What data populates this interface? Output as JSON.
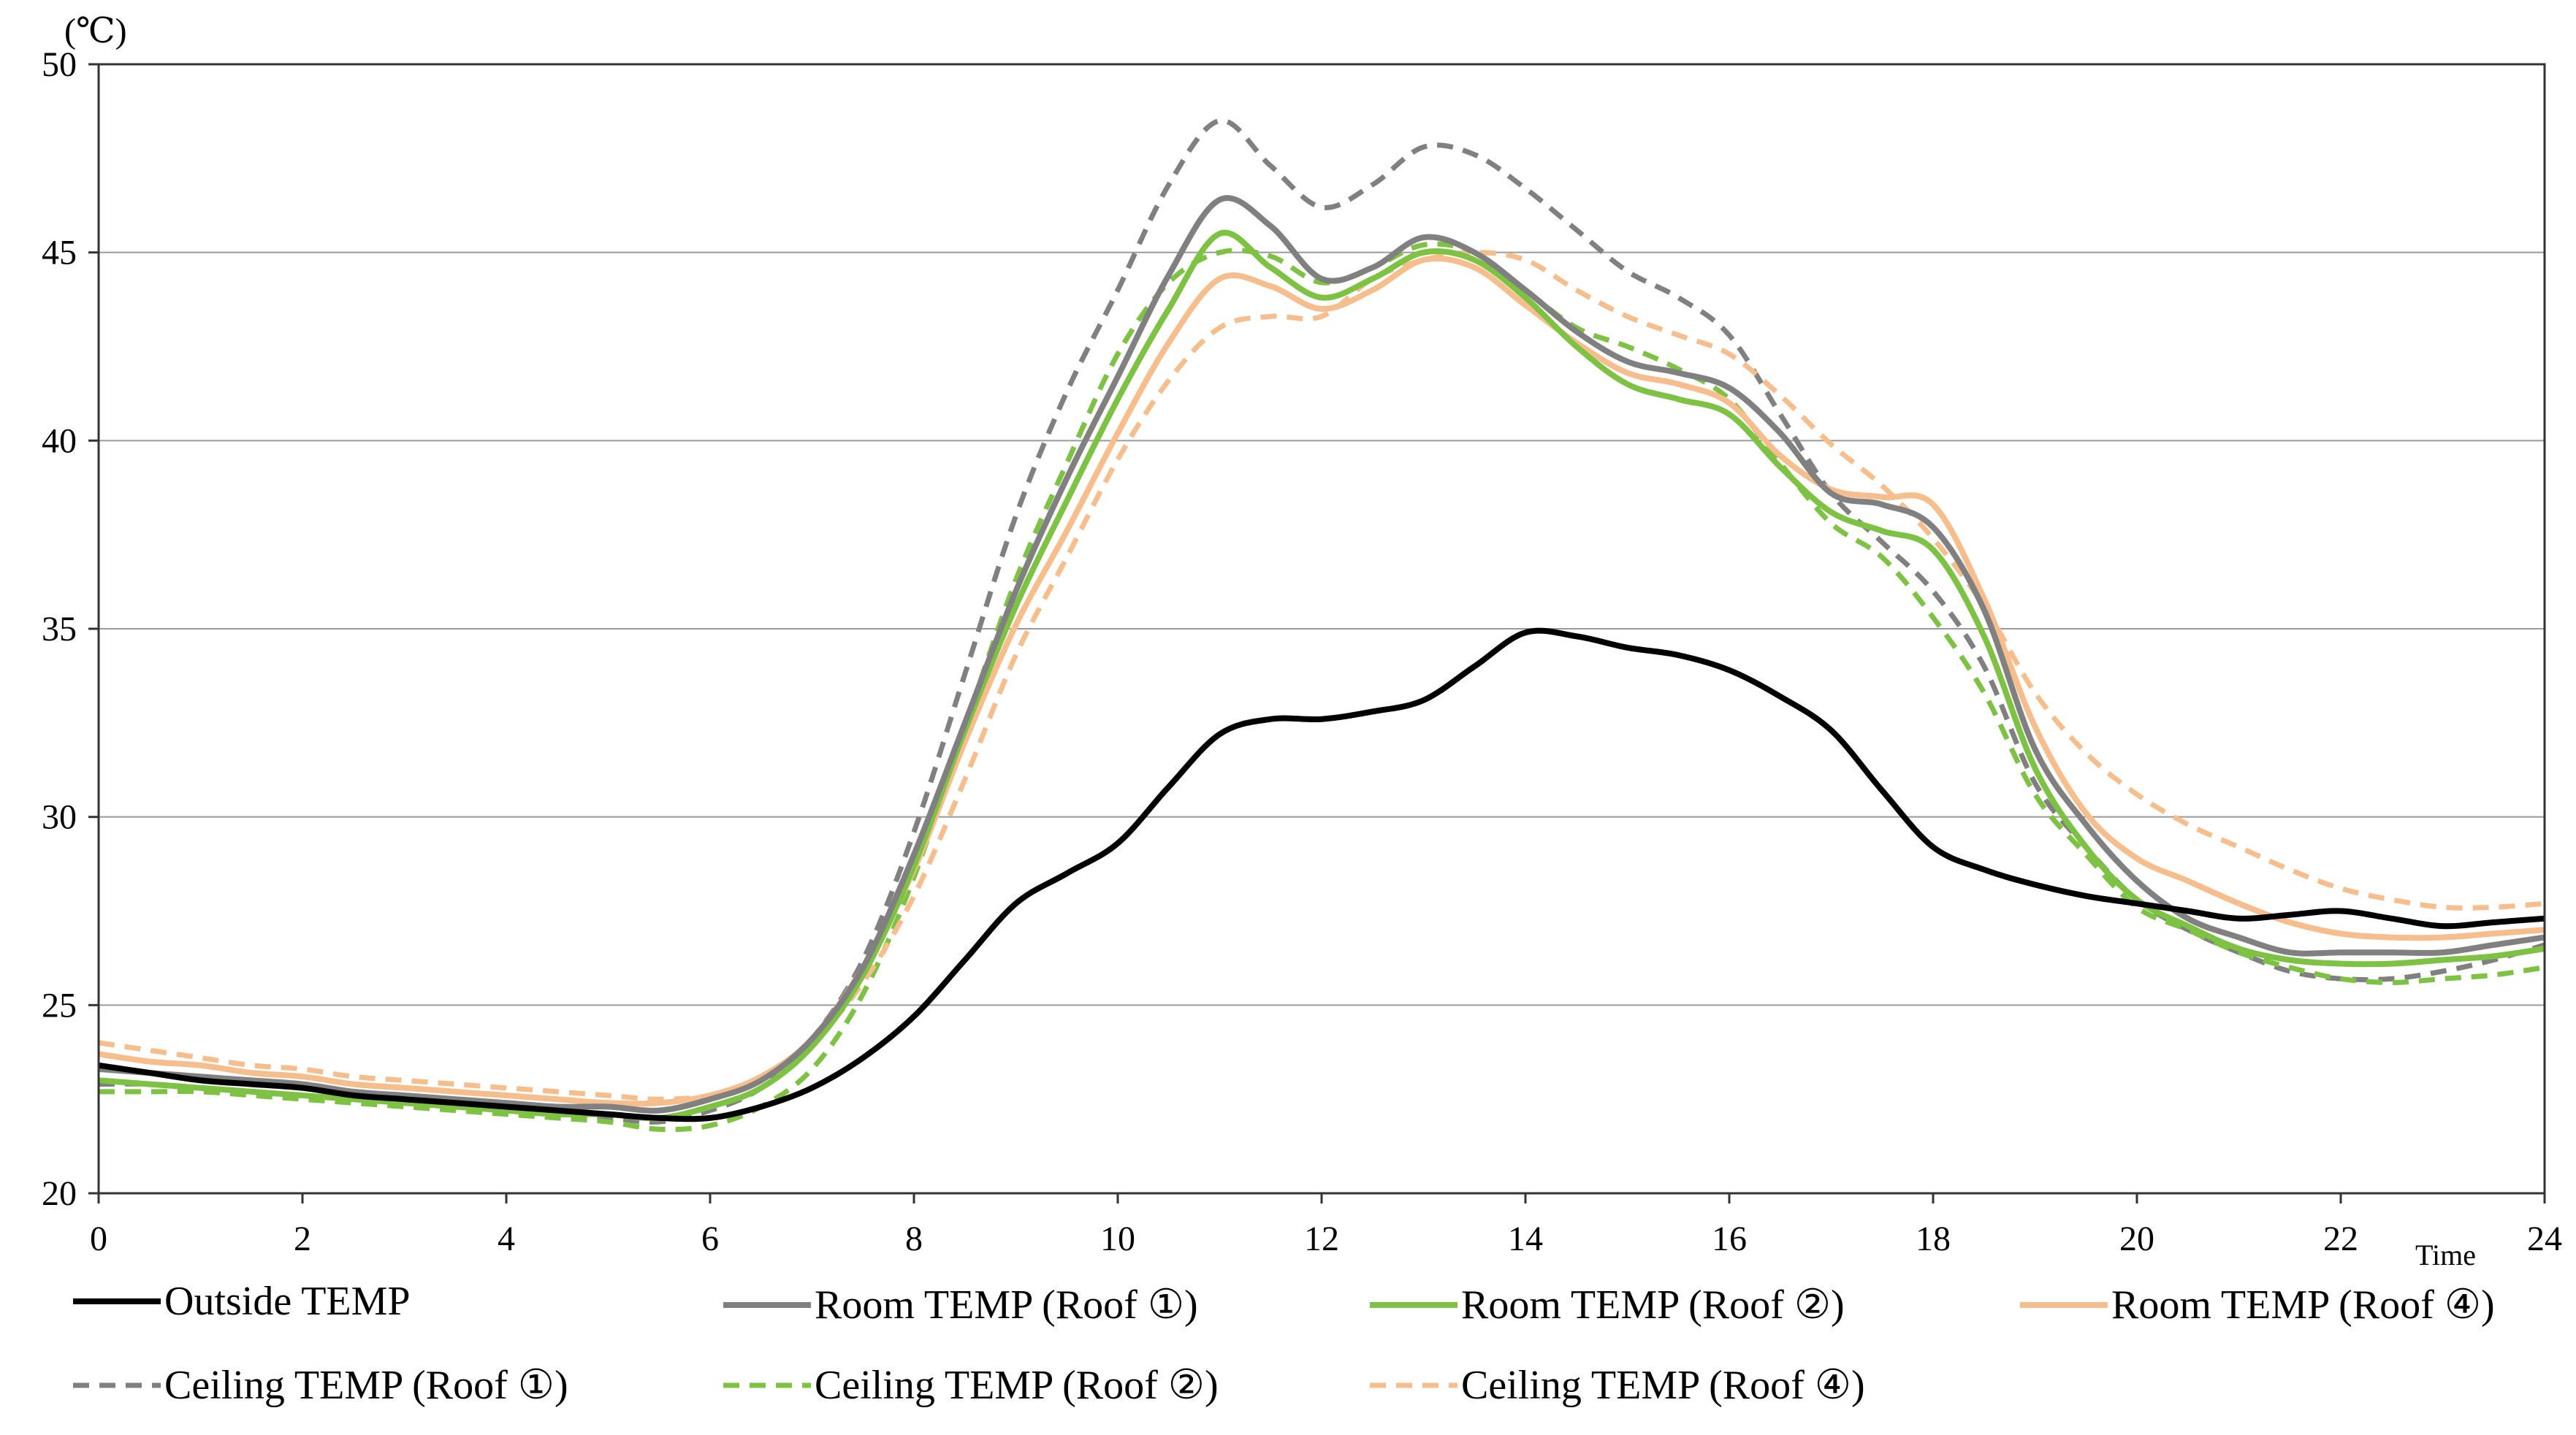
{
  "chart_data": {
    "type": "line",
    "title": "",
    "ylabel": "(℃)",
    "xlabel": "Time",
    "xlim": [
      0,
      24
    ],
    "ylim": [
      20,
      50
    ],
    "x_ticks": [
      "0",
      "2",
      "4",
      "6",
      "8",
      "10",
      "12",
      "14",
      "16",
      "18",
      "20",
      "22",
      "24"
    ],
    "y_ticks": [
      "20",
      "25",
      "30",
      "35",
      "40",
      "45",
      "50"
    ],
    "grid": true,
    "legend_position": "bottom",
    "x": [
      0,
      0.5,
      1,
      1.5,
      2,
      2.5,
      3,
      3.5,
      4,
      4.5,
      5,
      5.5,
      6,
      6.5,
      7,
      7.5,
      8,
      8.5,
      9,
      9.5,
      10,
      10.5,
      11,
      11.5,
      12,
      12.5,
      13,
      13.5,
      14,
      14.5,
      15,
      15.5,
      16,
      16.5,
      17,
      17.5,
      18,
      18.5,
      19,
      19.5,
      20,
      20.5,
      21,
      21.5,
      22,
      22.5,
      23,
      23.5,
      24
    ],
    "series": [
      {
        "name": "Outside TEMP",
        "color": "#000000",
        "dash": false,
        "values": [
          23.4,
          23.2,
          23.0,
          22.9,
          22.8,
          22.6,
          22.5,
          22.4,
          22.3,
          22.2,
          22.1,
          22.0,
          22.0,
          22.3,
          22.8,
          23.6,
          24.7,
          26.2,
          27.7,
          28.5,
          29.3,
          30.8,
          32.2,
          32.6,
          32.6,
          32.8,
          33.1,
          34.0,
          34.9,
          34.8,
          34.5,
          34.3,
          33.9,
          33.2,
          32.3,
          30.7,
          29.2,
          28.6,
          28.2,
          27.9,
          27.7,
          27.5,
          27.3,
          27.4,
          27.5,
          27.3,
          27.1,
          27.2,
          27.3
        ]
      },
      {
        "name": "Room TEMP (Roof ①)",
        "color": "#808080",
        "dash": false,
        "values": [
          23.3,
          23.2,
          23.1,
          23.0,
          22.9,
          22.7,
          22.6,
          22.5,
          22.4,
          22.3,
          22.3,
          22.2,
          22.5,
          23.0,
          24.1,
          26.0,
          29.0,
          32.5,
          36.0,
          39.0,
          41.7,
          44.4,
          46.4,
          45.7,
          44.3,
          44.6,
          45.4,
          45.0,
          44.0,
          42.9,
          42.1,
          41.8,
          41.4,
          40.2,
          38.6,
          38.3,
          37.7,
          35.5,
          31.8,
          29.8,
          28.3,
          27.3,
          26.8,
          26.4,
          26.4,
          26.4,
          26.4,
          26.6,
          26.8
        ]
      },
      {
        "name": "Room TEMP (Roof ②)",
        "color": "#7dc242",
        "dash": false,
        "values": [
          23.0,
          22.9,
          22.8,
          22.7,
          22.6,
          22.5,
          22.4,
          22.3,
          22.2,
          22.1,
          22.1,
          22.0,
          22.3,
          22.8,
          23.9,
          25.8,
          28.7,
          32.3,
          35.6,
          38.4,
          41.1,
          43.5,
          45.5,
          44.6,
          43.8,
          44.3,
          45.0,
          44.8,
          43.8,
          42.5,
          41.5,
          41.1,
          40.7,
          39.3,
          38.1,
          37.6,
          37.1,
          34.8,
          31.3,
          29.2,
          27.8,
          27.1,
          26.5,
          26.2,
          26.1,
          26.1,
          26.2,
          26.3,
          26.5
        ]
      },
      {
        "name": "Room TEMP (Roof ④)",
        "color": "#f7be8d",
        "dash": false,
        "values": [
          23.7,
          23.5,
          23.4,
          23.2,
          23.1,
          22.9,
          22.8,
          22.7,
          22.6,
          22.5,
          22.4,
          22.4,
          22.6,
          23.1,
          24.1,
          26.0,
          28.6,
          32.0,
          35.1,
          37.6,
          40.2,
          42.6,
          44.3,
          44.1,
          43.5,
          44.0,
          44.8,
          44.6,
          43.6,
          42.6,
          41.8,
          41.5,
          41.0,
          39.6,
          38.7,
          38.5,
          38.3,
          35.8,
          32.4,
          30.1,
          28.9,
          28.3,
          27.7,
          27.2,
          26.9,
          26.8,
          26.8,
          26.9,
          27.0
        ]
      },
      {
        "name": "Ceiling TEMP (Roof ①)",
        "color": "#808080",
        "dash": true,
        "values": [
          22.9,
          22.9,
          22.8,
          22.7,
          22.6,
          22.5,
          22.4,
          22.3,
          22.2,
          22.1,
          22.0,
          21.9,
          22.2,
          22.8,
          24.1,
          26.2,
          29.6,
          33.8,
          38.0,
          41.3,
          44.0,
          46.8,
          48.5,
          47.3,
          46.2,
          46.8,
          47.8,
          47.6,
          46.7,
          45.6,
          44.5,
          43.8,
          42.8,
          40.7,
          38.6,
          37.3,
          36.0,
          34.0,
          30.9,
          29.2,
          27.8,
          27.0,
          26.4,
          25.9,
          25.7,
          25.7,
          25.9,
          26.2,
          26.6
        ]
      },
      {
        "name": "Ceiling TEMP (Roof ②)",
        "color": "#7dc242",
        "dash": true,
        "values": [
          22.7,
          22.7,
          22.7,
          22.6,
          22.5,
          22.4,
          22.3,
          22.2,
          22.1,
          22.0,
          21.9,
          21.7,
          21.8,
          22.3,
          23.3,
          25.3,
          28.4,
          32.4,
          36.3,
          39.4,
          42.3,
          44.2,
          45.0,
          44.9,
          44.2,
          44.6,
          45.2,
          45.0,
          44.0,
          43.0,
          42.5,
          41.9,
          41.1,
          39.4,
          37.8,
          36.9,
          35.3,
          33.3,
          30.6,
          29.0,
          27.6,
          27.0,
          26.4,
          26.0,
          25.7,
          25.6,
          25.7,
          25.8,
          26.0
        ]
      },
      {
        "name": "Ceiling TEMP (Roof ④)",
        "color": "#f7be8d",
        "dash": true,
        "values": [
          24.0,
          23.8,
          23.6,
          23.4,
          23.3,
          23.1,
          23.0,
          22.9,
          22.8,
          22.7,
          22.6,
          22.5,
          22.6,
          23.0,
          24.0,
          25.6,
          27.9,
          31.0,
          34.3,
          36.9,
          39.5,
          41.6,
          43.0,
          43.3,
          43.3,
          44.3,
          44.8,
          45.0,
          44.8,
          44.0,
          43.3,
          42.8,
          42.3,
          41.2,
          39.9,
          38.8,
          37.4,
          35.6,
          33.3,
          31.7,
          30.6,
          29.8,
          29.2,
          28.6,
          28.1,
          27.8,
          27.6,
          27.6,
          27.7
        ]
      }
    ]
  }
}
